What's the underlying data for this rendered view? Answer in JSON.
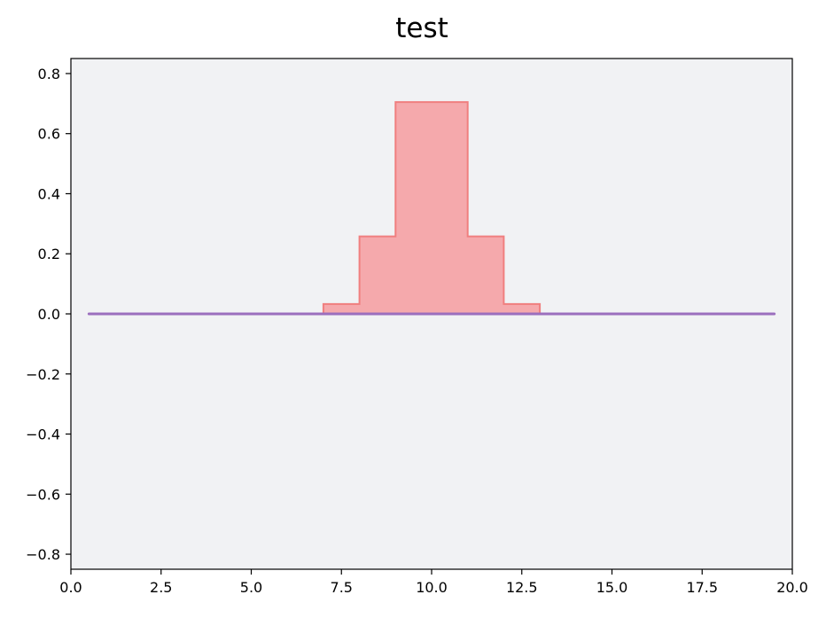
{
  "chart_data": {
    "type": "area",
    "title": "test",
    "xlabel": "",
    "ylabel": "",
    "xlim": [
      0.0,
      20.0
    ],
    "ylim": [
      -0.85,
      0.85
    ],
    "x_ticks": [
      "0.0",
      "2.5",
      "5.0",
      "7.5",
      "10.0",
      "12.5",
      "15.0",
      "17.5",
      "20.0"
    ],
    "x_tick_values": [
      0.0,
      2.5,
      5.0,
      7.5,
      10.0,
      12.5,
      15.0,
      17.5,
      20.0
    ],
    "y_ticks": [
      "−0.8",
      "−0.6",
      "−0.4",
      "−0.2",
      "0.0",
      "0.2",
      "0.4",
      "0.6",
      "0.8"
    ],
    "y_tick_values": [
      -0.8,
      -0.6,
      -0.4,
      -0.2,
      0.0,
      0.2,
      0.4,
      0.6,
      0.8
    ],
    "grid": false,
    "legend": "none",
    "series": [
      {
        "kind": "step-fill",
        "color": "#f07f7f",
        "fill": "#f5a9ac",
        "x": [
          0.5,
          7.0,
          7.0,
          8.0,
          8.0,
          9.0,
          9.0,
          11.0,
          11.0,
          12.0,
          12.0,
          13.0,
          13.0,
          19.5
        ],
        "values": [
          0.0,
          0.0,
          0.033,
          0.033,
          0.258,
          0.258,
          0.705,
          0.705,
          0.258,
          0.258,
          0.033,
          0.033,
          0.0,
          0.0
        ]
      },
      {
        "kind": "line",
        "color": "#9b6fbe",
        "x": [
          0.5,
          19.5
        ],
        "values": [
          0.0,
          0.0
        ]
      }
    ],
    "plot_background": "#f1f2f4"
  }
}
